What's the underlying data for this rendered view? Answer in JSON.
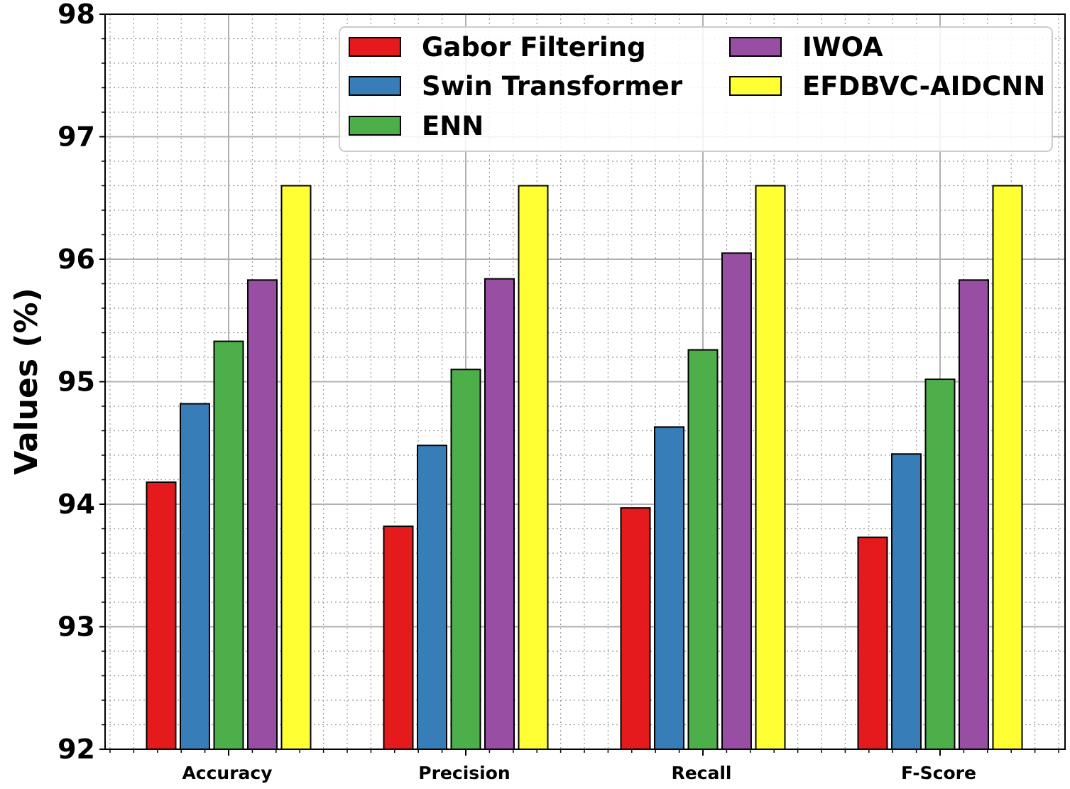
{
  "chart_data": {
    "type": "bar",
    "title": "",
    "xlabel": "",
    "ylabel": "Values (%)",
    "ylim": [
      92,
      98
    ],
    "yticks": [
      "92",
      "93",
      "94",
      "95",
      "96",
      "97",
      "98"
    ],
    "grid": true,
    "legend_position": "top-right",
    "categories": [
      "Accuracy",
      "Precision",
      "Recall",
      "F-Score"
    ],
    "series": [
      {
        "name": "Gabor Filtering",
        "color": "#e41a1c",
        "values": [
          94.18,
          93.82,
          93.97,
          93.73
        ]
      },
      {
        "name": "Swin Transformer",
        "color": "#377eb8",
        "values": [
          94.82,
          94.48,
          94.63,
          94.41
        ]
      },
      {
        "name": "ENN",
        "color": "#4daf4a",
        "values": [
          95.33,
          95.1,
          95.26,
          95.02
        ]
      },
      {
        "name": "IWOA",
        "color": "#984ea3",
        "values": [
          95.83,
          95.84,
          96.05,
          95.83
        ]
      },
      {
        "name": "EFDBVC-AIDCNN",
        "color": "#ffff33",
        "values": [
          96.6,
          96.6,
          96.6,
          96.6
        ]
      }
    ]
  }
}
